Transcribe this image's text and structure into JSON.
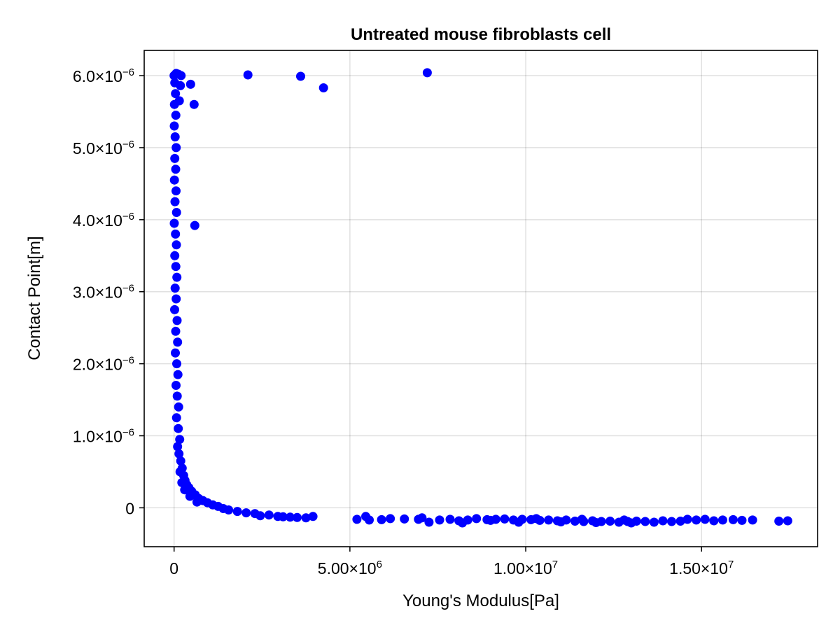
{
  "chart_data": {
    "type": "scatter",
    "title": "Untreated mouse fibroblasts cell",
    "xlabel": "Young's Modulus[Pa]",
    "ylabel": "Contact Point[m]",
    "xlim": [
      -850000,
      18300000
    ],
    "ylim": [
      -5.4e-07,
      6.35e-06
    ],
    "x_ticks": [
      {
        "value": 0,
        "label": "0",
        "sup": ""
      },
      {
        "value": 5000000,
        "label": "5.00×10",
        "sup": "6"
      },
      {
        "value": 10000000,
        "label": "1.00×10",
        "sup": "7"
      },
      {
        "value": 15000000,
        "label": "1.50×10",
        "sup": "7"
      }
    ],
    "y_ticks": [
      {
        "value": 0,
        "label": "0",
        "sup": ""
      },
      {
        "value": 1e-06,
        "label": "1.0×10",
        "sup": "−6"
      },
      {
        "value": 2e-06,
        "label": "2.0×10",
        "sup": "−6"
      },
      {
        "value": 3e-06,
        "label": "3.0×10",
        "sup": "−6"
      },
      {
        "value": 4e-06,
        "label": "4.0×10",
        "sup": "−6"
      },
      {
        "value": 5e-06,
        "label": "5.0×10",
        "sup": "−6"
      },
      {
        "value": 6e-06,
        "label": "6.0×10",
        "sup": "−6"
      }
    ],
    "grid": true,
    "legend": "none",
    "marker_color": "#0000ff",
    "series": [
      {
        "points": [
          [
            2100000,
            6.01e-06
          ],
          [
            3600000,
            5.99e-06
          ],
          [
            4250000,
            5.83e-06
          ],
          [
            7200000,
            6.04e-06
          ],
          [
            470000,
            5.88e-06
          ],
          [
            570000,
            5.6e-06
          ],
          [
            590000,
            3.92e-06
          ],
          [
            200000,
            6e-06
          ],
          [
            120000,
            6.02e-06
          ],
          [
            60000,
            6.03e-06
          ],
          [
            180000,
            5.86e-06
          ],
          [
            150000,
            5.65e-06
          ],
          [
            1000,
            6e-06
          ],
          [
            20000,
            5.9e-06
          ],
          [
            40000,
            5.75e-06
          ],
          [
            10000,
            5.6e-06
          ],
          [
            50000,
            5.45e-06
          ],
          [
            5000,
            5.3e-06
          ],
          [
            30000,
            5.15e-06
          ],
          [
            60000,
            5e-06
          ],
          [
            20000,
            4.85e-06
          ],
          [
            45000,
            4.7e-06
          ],
          [
            10000,
            4.55e-06
          ],
          [
            55000,
            4.4e-06
          ],
          [
            25000,
            4.25e-06
          ],
          [
            70000,
            4.1e-06
          ],
          [
            5000,
            3.95e-06
          ],
          [
            40000,
            3.8e-06
          ],
          [
            65000,
            3.65e-06
          ],
          [
            20000,
            3.5e-06
          ],
          [
            50000,
            3.35e-06
          ],
          [
            80000,
            3.2e-06
          ],
          [
            30000,
            3.05e-06
          ],
          [
            60000,
            2.9e-06
          ],
          [
            15000,
            2.75e-06
          ],
          [
            85000,
            2.6e-06
          ],
          [
            45000,
            2.45e-06
          ],
          [
            100000,
            2.3e-06
          ],
          [
            35000,
            2.15e-06
          ],
          [
            75000,
            2e-06
          ],
          [
            110000,
            1.85e-06
          ],
          [
            55000,
            1.7e-06
          ],
          [
            90000,
            1.55e-06
          ],
          [
            130000,
            1.4e-06
          ],
          [
            70000,
            1.25e-06
          ],
          [
            120000,
            1.1e-06
          ],
          [
            160000,
            9.5e-07
          ],
          [
            100000,
            8.5e-07
          ],
          [
            140000,
            7.5e-07
          ],
          [
            190000,
            6.5e-07
          ],
          [
            230000,
            5.5e-07
          ],
          [
            170000,
            5e-07
          ],
          [
            270000,
            4.5e-07
          ],
          [
            310000,
            3.8e-07
          ],
          [
            220000,
            3.5e-07
          ],
          [
            360000,
            3.2e-07
          ],
          [
            420000,
            2.8e-07
          ],
          [
            300000,
            2.5e-07
          ],
          [
            500000,
            2.3e-07
          ],
          [
            600000,
            1.8e-07
          ],
          [
            450000,
            1.6e-07
          ],
          [
            700000,
            1.3e-07
          ],
          [
            820000,
            1e-07
          ],
          [
            650000,
            8e-08
          ],
          [
            950000,
            7e-08
          ],
          [
            1100000,
            4e-08
          ],
          [
            1250000,
            2e-08
          ],
          [
            1400000,
            -1e-08
          ],
          [
            1550000,
            -3e-08
          ],
          [
            1800000,
            -5e-08
          ],
          [
            2050000,
            -7e-08
          ],
          [
            2300000,
            -8e-08
          ],
          [
            2450000,
            -1.1e-07
          ],
          [
            2700000,
            -1e-07
          ],
          [
            2950000,
            -1.2e-07
          ],
          [
            3100000,
            -1.25e-07
          ],
          [
            3300000,
            -1.3e-07
          ],
          [
            3500000,
            -1.35e-07
          ],
          [
            3750000,
            -1.4e-07
          ],
          [
            3950000,
            -1.2e-07
          ],
          [
            5200000,
            -1.6e-07
          ],
          [
            5450000,
            -1.2e-07
          ],
          [
            5550000,
            -1.7e-07
          ],
          [
            5900000,
            -1.65e-07
          ],
          [
            6150000,
            -1.5e-07
          ],
          [
            6550000,
            -1.55e-07
          ],
          [
            6950000,
            -1.6e-07
          ],
          [
            7050000,
            -1.4e-07
          ],
          [
            7250000,
            -2e-07
          ],
          [
            7550000,
            -1.7e-07
          ],
          [
            7850000,
            -1.6e-07
          ],
          [
            8100000,
            -1.8e-07
          ],
          [
            8350000,
            -1.7e-07
          ],
          [
            8600000,
            -1.5e-07
          ],
          [
            8900000,
            -1.65e-07
          ],
          [
            9150000,
            -1.6e-07
          ],
          [
            9400000,
            -1.55e-07
          ],
          [
            9650000,
            -1.7e-07
          ],
          [
            9900000,
            -1.6e-07
          ],
          [
            10150000,
            -1.65e-07
          ],
          [
            10400000,
            -1.75e-07
          ],
          [
            10650000,
            -1.7e-07
          ],
          [
            10900000,
            -1.8e-07
          ],
          [
            11150000,
            -1.7e-07
          ],
          [
            11400000,
            -1.85e-07
          ],
          [
            11650000,
            -1.9e-07
          ],
          [
            11900000,
            -1.8e-07
          ],
          [
            12150000,
            -1.9e-07
          ],
          [
            12400000,
            -1.85e-07
          ],
          [
            12650000,
            -2e-07
          ],
          [
            12900000,
            -1.9e-07
          ],
          [
            13150000,
            -1.85e-07
          ],
          [
            13400000,
            -1.9e-07
          ],
          [
            13650000,
            -2e-07
          ],
          [
            13900000,
            -1.8e-07
          ],
          [
            14150000,
            -1.9e-07
          ],
          [
            14400000,
            -1.85e-07
          ],
          [
            14600000,
            -1.6e-07
          ],
          [
            14850000,
            -1.7e-07
          ],
          [
            15100000,
            -1.6e-07
          ],
          [
            15350000,
            -1.8e-07
          ],
          [
            15600000,
            -1.7e-07
          ],
          [
            15900000,
            -1.65e-07
          ],
          [
            16150000,
            -1.75e-07
          ],
          [
            16450000,
            -1.7e-07
          ],
          [
            17200000,
            -1.85e-07
          ],
          [
            17450000,
            -1.8e-07
          ],
          [
            9800000,
            -2e-07
          ],
          [
            10300000,
            -1.5e-07
          ],
          [
            11000000,
            -1.95e-07
          ],
          [
            12000000,
            -2.05e-07
          ],
          [
            13000000,
            -2.1e-07
          ],
          [
            8200000,
            -2.1e-07
          ],
          [
            9000000,
            -1.75e-07
          ],
          [
            11600000,
            -1.6e-07
          ],
          [
            12800000,
            -1.7e-07
          ]
        ]
      }
    ]
  }
}
